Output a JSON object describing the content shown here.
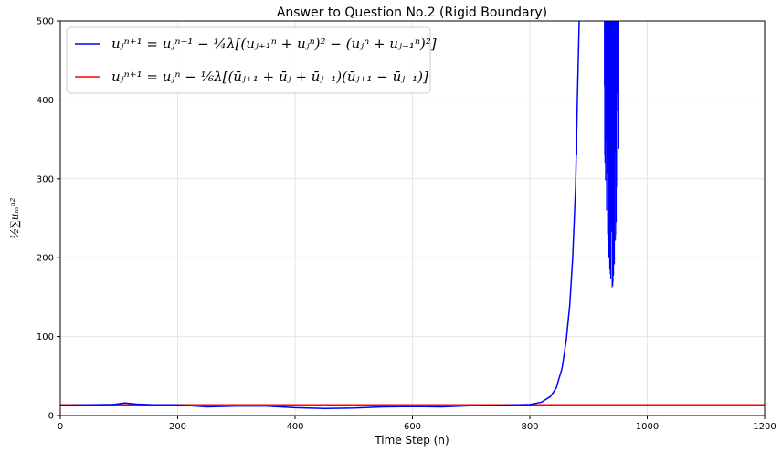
{
  "chart_data": {
    "type": "line",
    "title": "Answer to Question No.2 (Rigid Boundary)",
    "xlabel": "Time Step (n)",
    "ylabel": "½∑uₘⁿ²",
    "xlim": [
      0,
      1200
    ],
    "ylim": [
      0,
      500
    ],
    "xticks": [
      "0",
      "200",
      "400",
      "600",
      "800",
      "1000",
      "1200"
    ],
    "yticks": [
      "0",
      "100",
      "200",
      "300",
      "400",
      "500"
    ],
    "grid": true,
    "legend_position": "top-left",
    "series": [
      {
        "name": "uⱼⁿ⁺¹ = uⱼⁿ⁻¹ − ¼λ[(uⱼ₊₁ⁿ + uⱼⁿ)² − (uⱼⁿ + uⱼ₋₁ⁿ)²]",
        "color": "#0000ff",
        "x": [
          0,
          50,
          90,
          110,
          130,
          160,
          200,
          250,
          300,
          350,
          400,
          450,
          500,
          550,
          600,
          650,
          700,
          750,
          780,
          800,
          820,
          835,
          845,
          855,
          862,
          868,
          873,
          878,
          881,
          884
        ],
        "y": [
          13,
          13.5,
          14,
          16,
          14.5,
          13.5,
          13.5,
          11,
          12,
          12,
          10,
          9,
          9.5,
          11,
          11.5,
          11,
          12.5,
          13,
          13.5,
          14,
          17,
          24,
          35,
          60,
          95,
          140,
          200,
          290,
          400,
          500
        ]
      },
      {
        "name": "uⱼⁿ⁺¹ = uⱼⁿ − ⅙λ[(ūⱼ₊₁ + ūⱼ + ūⱼ₋₁)(ūⱼ₊₁ − ūⱼ₋₁)]",
        "color": "#ff0000",
        "x": [
          0,
          1200
        ],
        "y": [
          13.5,
          13.5
        ]
      }
    ],
    "oscillation_region": {
      "series": 0,
      "x_range": [
        927,
        952
      ],
      "upper": 500,
      "lower_min": [
        [
          927,
          340
        ],
        [
          930,
          270
        ],
        [
          933,
          220
        ],
        [
          936,
          185
        ],
        [
          939,
          165
        ],
        [
          941,
          160
        ],
        [
          944,
          190
        ],
        [
          947,
          240
        ],
        [
          950,
          300
        ],
        [
          952,
          310
        ]
      ]
    },
    "colors": {
      "blue": "#0000ff",
      "red": "#ff0000",
      "grid": "#e6e6e6"
    }
  }
}
